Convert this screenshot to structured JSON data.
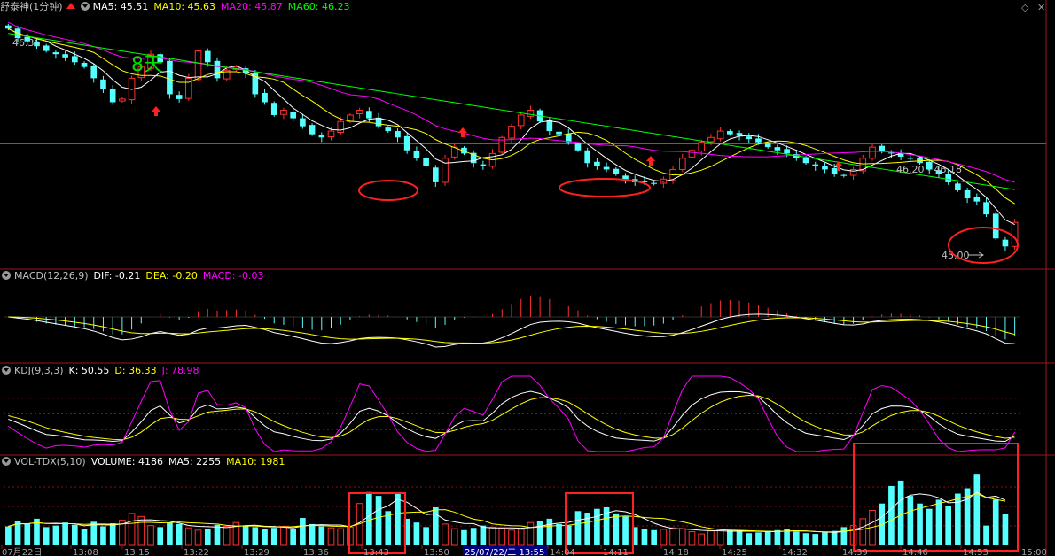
{
  "header": {
    "stock": "舒泰神(1分钟)",
    "ma_items": [
      {
        "label": "MA5: 45.51",
        "color": "#ffffff"
      },
      {
        "label": "MA10: 45.63",
        "color": "#ffff00"
      },
      {
        "label": "MA20: 45.87",
        "color": "#ff00ff"
      },
      {
        "label": "MA60: 46.23",
        "color": "#00ff00"
      }
    ]
  },
  "price_panel": {
    "high_label": "46.36",
    "low_label": "45.00",
    "range_label": "46.20 - 46.18",
    "day_marker": "8天"
  },
  "macd": {
    "title": "MACD(12,26,9)",
    "items": [
      {
        "label": "DIF: -0.21",
        "color": "#ffffff"
      },
      {
        "label": "DEA: -0.20",
        "color": "#ffff00"
      },
      {
        "label": "MACD: -0.03",
        "color": "#ff00ff"
      }
    ]
  },
  "kdj": {
    "title": "KDJ(9,3,3)",
    "items": [
      {
        "label": "K: 50.55",
        "color": "#ffffff"
      },
      {
        "label": "D: 36.33",
        "color": "#ffff00"
      },
      {
        "label": "J: 78.98",
        "color": "#ff00ff"
      }
    ]
  },
  "vol": {
    "title": "VOL-TDX(5,10)",
    "items": [
      {
        "label": "VOLUME: 4186",
        "color": "#ffffff"
      },
      {
        "label": "MA5: 2255",
        "color": "#ffffff"
      },
      {
        "label": "MA10: 1981",
        "color": "#ffff00"
      }
    ]
  },
  "chart_data": {
    "type": "candlestick",
    "title": "舒泰神(1分钟)",
    "x_tick_labels": [
      "07月22日",
      "13:08",
      "13:15",
      "13:22",
      "13:29",
      "13:36",
      "13:43",
      "13:50",
      "25/07/22/二 13:55",
      "14:04",
      "14:11",
      "14:18",
      "14:25",
      "14:32",
      "14:39",
      "14:46",
      "14:53",
      "15:00"
    ],
    "ylim": [
      44.88,
      46.45
    ],
    "price_path": [
      46.36,
      46.3,
      46.28,
      46.25,
      46.22,
      46.2,
      46.18,
      46.15,
      46.12,
      46.05,
      45.98,
      45.9,
      45.92,
      46.05,
      46.12,
      46.2,
      46.15,
      45.95,
      45.92,
      46.05,
      46.22,
      46.15,
      46.05,
      46.1,
      46.12,
      46.08,
      45.95,
      45.9,
      45.82,
      45.85,
      45.8,
      45.75,
      45.7,
      45.68,
      45.72,
      45.78,
      45.82,
      45.85,
      45.8,
      45.75,
      45.72,
      45.68,
      45.6,
      45.55,
      45.5,
      45.4,
      45.55,
      45.62,
      45.58,
      45.52,
      45.5,
      45.58,
      45.68,
      45.75,
      45.82,
      45.85,
      45.78,
      45.72,
      45.7,
      45.65,
      45.6,
      45.52,
      45.5,
      45.48,
      45.45,
      45.42,
      45.4,
      45.4,
      45.39,
      45.42,
      45.48,
      45.55,
      45.6,
      45.65,
      45.68,
      45.72,
      45.7,
      45.69,
      45.67,
      45.65,
      45.62,
      45.6,
      45.58,
      45.55,
      45.52,
      45.5,
      45.48,
      45.45,
      45.44,
      45.48,
      45.55,
      45.62,
      45.59,
      45.58,
      45.56,
      45.55,
      45.52,
      45.48,
      45.45,
      45.4,
      45.35,
      45.3,
      45.28,
      45.2,
      45.05,
      45.0,
      45.15
    ],
    "volume_ylim": [
      0,
      10000
    ],
    "volume": [
      2500,
      3200,
      2800,
      3500,
      2400,
      2600,
      3000,
      2700,
      2200,
      3100,
      2500,
      2900,
      3300,
      4200,
      3800,
      2600,
      2400,
      3000,
      2800,
      2300,
      2000,
      2200,
      2700,
      2500,
      3000,
      2600,
      2400,
      2100,
      2300,
      2500,
      2200,
      3600,
      2800,
      2500,
      2300,
      2200,
      2400,
      5500,
      7000,
      6500,
      4500,
      6800,
      3500,
      3000,
      2400,
      5000,
      2800,
      2200,
      2000,
      2300,
      2600,
      2400,
      2200,
      2000,
      2100,
      3000,
      3200,
      3500,
      2800,
      2600,
      4500,
      4300,
      4800,
      5000,
      4200,
      3800,
      2400,
      2200,
      2000,
      2100,
      2300,
      2200,
      1800,
      1500,
      1900,
      2100,
      2000,
      1800,
      1600,
      1700,
      1900,
      2000,
      2200,
      1800,
      1600,
      1500,
      1700,
      1900,
      2400,
      2600,
      3500,
      4600,
      5500,
      7800,
      8500,
      6500,
      5500,
      4800,
      6000,
      5200,
      6800,
      7500,
      9400,
      2600,
      6000,
      4186
    ]
  }
}
